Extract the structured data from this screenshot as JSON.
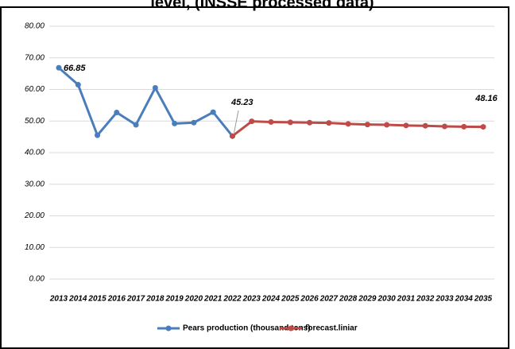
{
  "chart_data": {
    "type": "line",
    "title": "level, (INSSE processed data)",
    "categories": [
      "2013",
      "2014",
      "2015",
      "2016",
      "2017",
      "2018",
      "2019",
      "2020",
      "2021",
      "2022",
      "2023",
      "2024",
      "2025",
      "2026",
      "2027",
      "2028",
      "2029",
      "2030",
      "2031",
      "2032",
      "2033",
      "2034",
      "2035"
    ],
    "series": [
      {
        "name": "Pears production (thousand tons)",
        "color": "#4a7ebb",
        "values": [
          66.85,
          61.5,
          45.5,
          52.7,
          48.8,
          60.5,
          49.2,
          49.5,
          52.8,
          45.23,
          null,
          null,
          null,
          null,
          null,
          null,
          null,
          null,
          null,
          null,
          null,
          null,
          null
        ]
      },
      {
        "name": "forecast.liniar",
        "color": "#be4b48",
        "values": [
          null,
          null,
          null,
          null,
          null,
          null,
          null,
          null,
          null,
          45.23,
          49.9,
          49.7,
          49.6,
          49.5,
          49.4,
          49.1,
          48.9,
          48.8,
          48.6,
          48.5,
          48.3,
          48.2,
          48.16
        ]
      }
    ],
    "ylim": [
      0,
      80
    ],
    "yticks": [
      {
        "value": 0,
        "label": "0.00"
      },
      {
        "value": 10,
        "label": "10.00"
      },
      {
        "value": 20,
        "label": "20.00"
      },
      {
        "value": 30,
        "label": "30.00"
      },
      {
        "value": 40,
        "label": "40.00"
      },
      {
        "value": 50,
        "label": "50.00"
      },
      {
        "value": 60,
        "label": "60.00"
      },
      {
        "value": 70,
        "label": "70.00"
      },
      {
        "value": 80,
        "label": "80.00"
      }
    ],
    "grid": true,
    "legend": "bottom"
  }
}
